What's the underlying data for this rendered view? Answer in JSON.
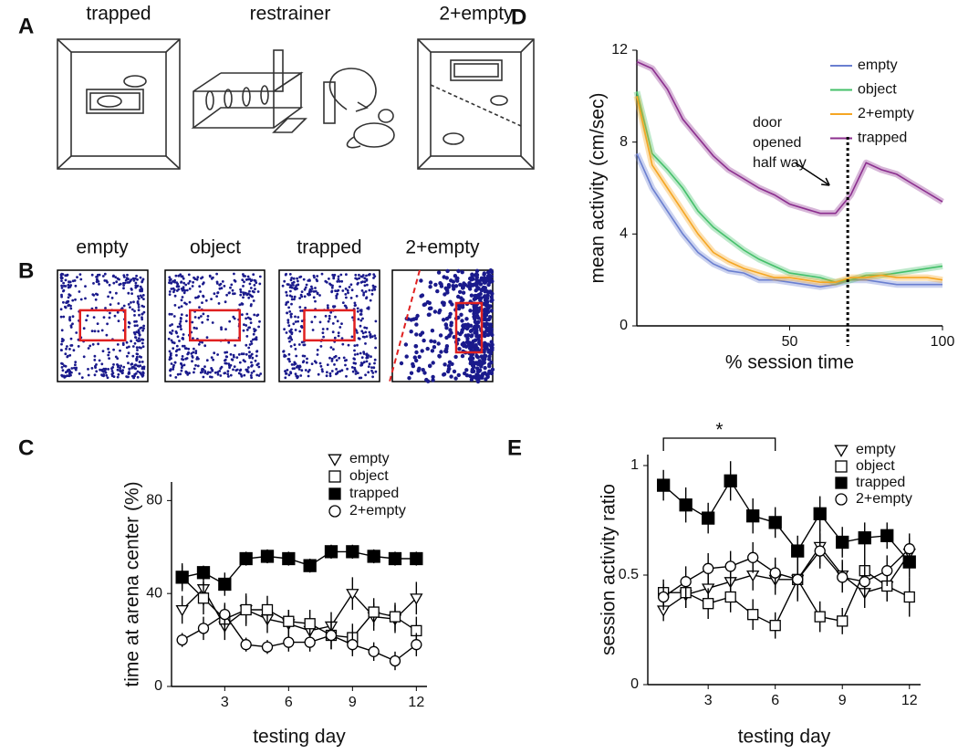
{
  "panel_a": {
    "panel": "A",
    "labels": [
      "trapped",
      "restrainer",
      "2+empty"
    ]
  },
  "panel_b": {
    "panel": "B",
    "labels": [
      "empty",
      "object",
      "trapped",
      "2+empty"
    ]
  },
  "chart_data": [
    {
      "type": "line",
      "panel": "D",
      "ylabel": "mean activity (cm/sec)",
      "xlabel": "% session time",
      "x": [
        0,
        5,
        10,
        15,
        20,
        25,
        30,
        35,
        40,
        45,
        50,
        55,
        60,
        65,
        70,
        75,
        80,
        85,
        90,
        95,
        100
      ],
      "xlim": [
        0,
        100
      ],
      "ylim": [
        0,
        12
      ],
      "xticks": [
        50,
        100
      ],
      "yticks": [
        0,
        4,
        8,
        12
      ],
      "series": [
        {
          "name": "empty",
          "color": "#6a7fd0",
          "values": [
            7.5,
            6.0,
            5.0,
            4.0,
            3.2,
            2.7,
            2.4,
            2.3,
            2.0,
            2.0,
            1.9,
            1.8,
            1.7,
            1.8,
            2.0,
            2.0,
            1.9,
            1.8,
            1.8,
            1.8,
            1.8
          ]
        },
        {
          "name": "object",
          "color": "#44c06a",
          "values": [
            10.2,
            7.5,
            6.8,
            6.0,
            5.0,
            4.3,
            3.8,
            3.3,
            2.9,
            2.6,
            2.3,
            2.2,
            2.1,
            1.9,
            2.0,
            2.2,
            2.2,
            2.3,
            2.4,
            2.5,
            2.6
          ]
        },
        {
          "name": "2+empty",
          "color": "#f5a623",
          "values": [
            10.0,
            7.0,
            6.0,
            5.0,
            4.0,
            3.2,
            2.8,
            2.5,
            2.3,
            2.1,
            2.1,
            2.0,
            1.9,
            1.9,
            2.1,
            2.1,
            2.2,
            2.1,
            2.1,
            2.1,
            2.0
          ]
        },
        {
          "name": "trapped",
          "color": "#8b2e8e",
          "values": [
            11.5,
            11.2,
            10.3,
            9.0,
            8.2,
            7.4,
            6.8,
            6.4,
            6.0,
            5.7,
            5.3,
            5.1,
            4.9,
            4.9,
            5.7,
            7.1,
            6.8,
            6.6,
            6.2,
            5.8,
            5.4
          ]
        }
      ],
      "annotation": {
        "lines": [
          "door",
          "opened",
          "half way"
        ],
        "x": 69
      }
    },
    {
      "type": "line",
      "panel": "C",
      "ylabel": "time at arena center (%)",
      "xlabel": "testing day",
      "x": [
        1,
        2,
        3,
        4,
        5,
        6,
        7,
        8,
        9,
        10,
        11,
        12
      ],
      "xlim": [
        0.5,
        12.5
      ],
      "ylim": [
        0,
        88
      ],
      "xticks": [
        3,
        6,
        9,
        12
      ],
      "yticks": [
        0,
        40,
        80
      ],
      "series": [
        {
          "name": "empty",
          "color": "#000000",
          "fill": "#ffffff",
          "marker": "triangle-down",
          "values": [
            33,
            42,
            26,
            33,
            29,
            27,
            24,
            26,
            40,
            30,
            29,
            38
          ],
          "errors": [
            6,
            7,
            6,
            7,
            6,
            6,
            5,
            6,
            7,
            6,
            6,
            7
          ]
        },
        {
          "name": "object",
          "color": "#000000",
          "fill": "#ffffff",
          "marker": "square",
          "values": [
            47,
            38,
            29,
            33,
            33,
            28,
            27,
            22,
            21,
            32,
            30,
            24
          ],
          "errors": [
            6,
            7,
            6,
            6,
            6,
            5,
            6,
            6,
            6,
            6,
            6,
            6
          ]
        },
        {
          "name": "trapped",
          "color": "#000000",
          "fill": "#000000",
          "marker": "square",
          "values": [
            47,
            49,
            44,
            55,
            56,
            55,
            52,
            58,
            58,
            56,
            55,
            55
          ],
          "errors": [
            5,
            3,
            5,
            3,
            3,
            3,
            3,
            3,
            3,
            3,
            3,
            3
          ]
        },
        {
          "name": "2+empty",
          "color": "#000000",
          "fill": "#ffffff",
          "marker": "circle",
          "values": [
            20,
            25,
            31,
            18,
            17,
            19,
            19,
            22,
            18,
            15,
            11,
            18
          ],
          "errors": [
            3,
            5,
            5,
            3,
            3,
            4,
            4,
            6,
            5,
            4,
            4,
            5
          ]
        }
      ]
    },
    {
      "type": "line",
      "panel": "E",
      "ylabel": "session activity  ratio",
      "xlabel": "testing day",
      "x": [
        1,
        2,
        3,
        4,
        5,
        6,
        7,
        8,
        9,
        10,
        11,
        12
      ],
      "xlim": [
        0.3,
        12.5
      ],
      "ylim": [
        0,
        1.05
      ],
      "xticks": [
        3,
        6,
        9,
        12
      ],
      "yticks": [
        0,
        0.5,
        1
      ],
      "series": [
        {
          "name": "empty",
          "color": "#000000",
          "fill": "#ffffff",
          "marker": "triangle-down",
          "values": [
            0.34,
            0.41,
            0.44,
            0.47,
            0.5,
            0.48,
            0.48,
            0.63,
            0.5,
            0.42,
            0.45,
            0.6
          ],
          "errors": [
            0.05,
            0.06,
            0.07,
            0.07,
            0.07,
            0.07,
            0.09,
            0.08,
            0.07,
            0.07,
            0.07,
            0.07
          ]
        },
        {
          "name": "object",
          "color": "#000000",
          "fill": "#ffffff",
          "marker": "square",
          "values": [
            0.42,
            0.42,
            0.37,
            0.4,
            0.32,
            0.27,
            0.48,
            0.31,
            0.29,
            0.52,
            0.45,
            0.4
          ],
          "errors": [
            0.06,
            0.07,
            0.07,
            0.07,
            0.07,
            0.06,
            0.1,
            0.07,
            0.06,
            0.08,
            0.07,
            0.09
          ]
        },
        {
          "name": "trapped",
          "color": "#000000",
          "fill": "#000000",
          "marker": "square",
          "values": [
            0.91,
            0.82,
            0.76,
            0.93,
            0.77,
            0.74,
            0.61,
            0.78,
            0.65,
            0.67,
            0.68,
            0.56
          ],
          "errors": [
            0.07,
            0.08,
            0.07,
            0.09,
            0.08,
            0.07,
            0.07,
            0.08,
            0.07,
            0.07,
            0.06,
            0.07
          ]
        },
        {
          "name": "2+empty",
          "color": "#000000",
          "fill": "#ffffff",
          "marker": "circle",
          "values": [
            0.4,
            0.47,
            0.53,
            0.54,
            0.58,
            0.51,
            0.48,
            0.61,
            0.49,
            0.47,
            0.52,
            0.62
          ],
          "errors": [
            0.06,
            0.07,
            0.07,
            0.07,
            0.07,
            0.07,
            0.08,
            0.08,
            0.07,
            0.07,
            0.07,
            0.07
          ]
        }
      ],
      "annotation": {
        "text": "*",
        "x": [
          1,
          6
        ]
      }
    }
  ]
}
